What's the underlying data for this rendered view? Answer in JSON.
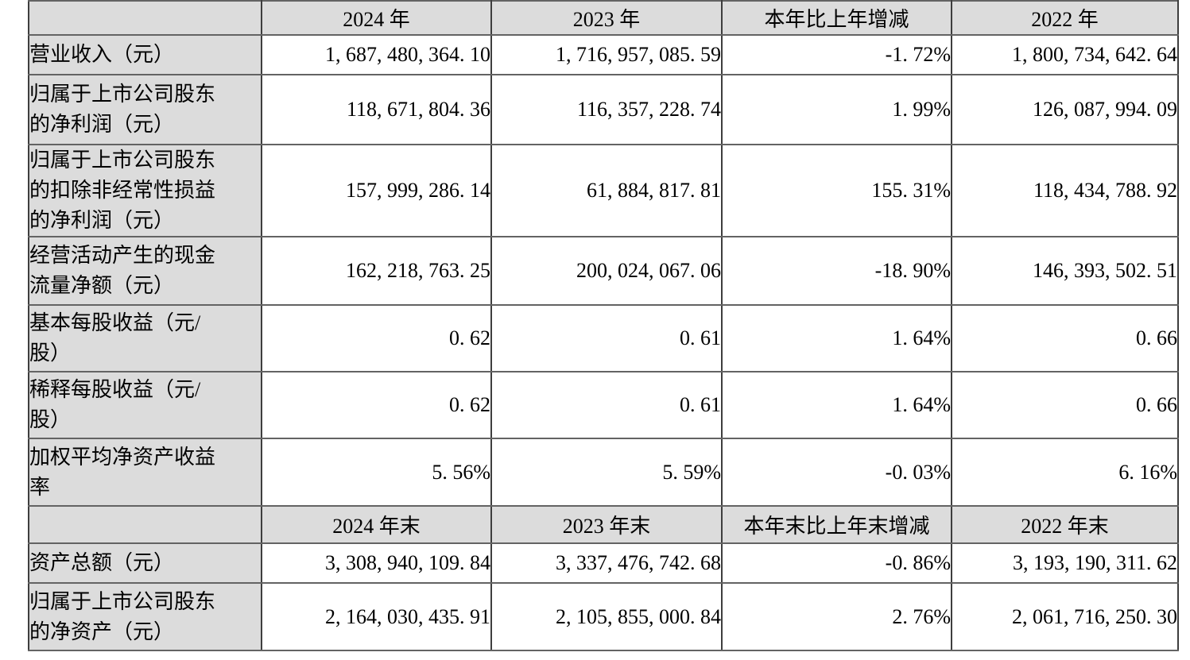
{
  "colors": {
    "header_background": "#dcdcdc",
    "label_column_background": "#dcdcdc",
    "cell_background": "#ffffff",
    "border_vertical": "#3e3e3e",
    "border_horizontal": "#636363",
    "text": "#000000"
  },
  "table": {
    "header1": {
      "corner": "",
      "cols": [
        "2024 年",
        "2023 年",
        "本年比上年增减",
        "2022 年"
      ]
    },
    "rows1": [
      {
        "label": "营业收入（元）",
        "values": [
          "1, 687, 480, 364. 10",
          "1, 716, 957, 085. 59",
          "-1. 72%",
          "1, 800, 734, 642. 64"
        ]
      },
      {
        "label": "归属于上市公司股东\n的净利润（元）",
        "values": [
          "118, 671, 804. 36",
          "116, 357, 228. 74",
          "1. 99%",
          "126, 087, 994. 09"
        ]
      },
      {
        "label": "归属于上市公司股东\n的扣除非经常性损益\n的净利润（元）",
        "values": [
          "157, 999, 286. 14",
          "61, 884, 817. 81",
          "155. 31%",
          "118, 434, 788. 92"
        ]
      },
      {
        "label": "经营活动产生的现金\n流量净额（元）",
        "values": [
          "162, 218, 763. 25",
          "200, 024, 067. 06",
          "-18. 90%",
          "146, 393, 502. 51"
        ]
      },
      {
        "label": "基本每股收益（元/\n股）",
        "values": [
          "0. 62",
          "0. 61",
          "1. 64%",
          "0. 66"
        ]
      },
      {
        "label": "稀释每股收益（元/\n股）",
        "values": [
          "0. 62",
          "0. 61",
          "1. 64%",
          "0. 66"
        ]
      },
      {
        "label": "加权平均净资产收益\n率",
        "values": [
          "5. 56%",
          "5. 59%",
          "-0. 03%",
          "6. 16%"
        ]
      }
    ],
    "header2": {
      "corner": "",
      "cols": [
        "2024 年末",
        "2023 年末",
        "本年末比上年末增减",
        "2022 年末"
      ]
    },
    "rows2": [
      {
        "label": "资产总额（元）",
        "values": [
          "3, 308, 940, 109. 84",
          "3, 337, 476, 742. 68",
          "-0. 86%",
          "3, 193, 190, 311. 62"
        ]
      },
      {
        "label": "归属于上市公司股东\n的净资产（元）",
        "values": [
          "2, 164, 030, 435. 91",
          "2, 105, 855, 000. 84",
          "2. 76%",
          "2, 061, 716, 250. 30"
        ]
      }
    ]
  }
}
